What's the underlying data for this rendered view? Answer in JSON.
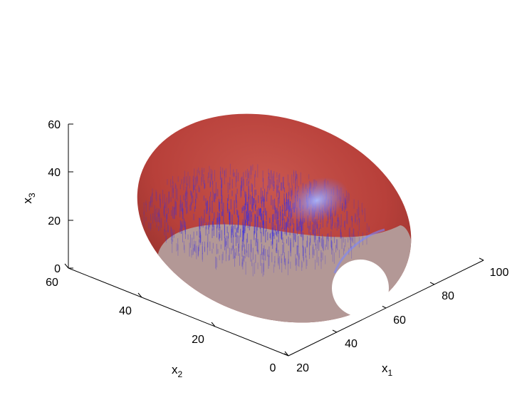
{
  "chart_data": {
    "type": "scatter",
    "dimensions": 3,
    "elements": [
      "ellipsoid surface",
      "point cloud"
    ],
    "axes": {
      "x1": {
        "label": "x",
        "subscript": "1",
        "ticks": [
          "20",
          "40",
          "60",
          "80",
          "100"
        ],
        "range": [
          20,
          100
        ]
      },
      "x2": {
        "label": "x",
        "subscript": "2",
        "ticks": [
          "0",
          "20",
          "40",
          "60"
        ],
        "range": [
          0,
          60
        ]
      },
      "x3": {
        "label": "x",
        "subscript": "3",
        "ticks": [
          "0",
          "20",
          "40",
          "60"
        ],
        "range": [
          0,
          60
        ]
      }
    },
    "grid": false,
    "colors": {
      "surface": "#b8403a",
      "surface_cut": "#b39896",
      "points": "#3a2ee0",
      "highlight": "#8ea2ff"
    }
  }
}
